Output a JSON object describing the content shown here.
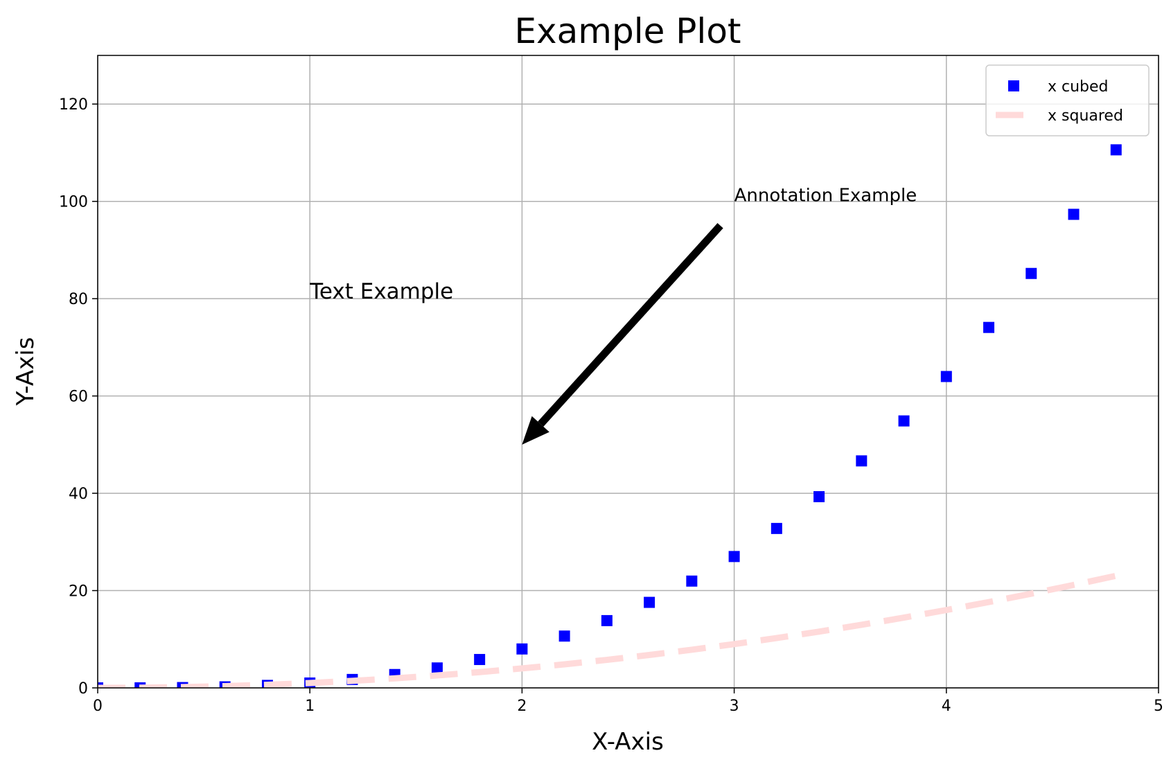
{
  "chart_data": {
    "type": "line",
    "title": "Example Plot",
    "x_label": "X-Axis",
    "y_label": "Y-Axis",
    "x": [
      0,
      0.2,
      0.4,
      0.6,
      0.8,
      1,
      1.2,
      1.4,
      1.6,
      1.8,
      2,
      2.2,
      2.4,
      2.6,
      2.8,
      3,
      3.2,
      3.4,
      3.6,
      3.8,
      4,
      4.2,
      4.4,
      4.6,
      4.8
    ],
    "series": [
      {
        "name": "x cubed",
        "color": "#0000ff",
        "style": "square-markers",
        "values": [
          0,
          0.008,
          0.064,
          0.216,
          0.512,
          1,
          1.728,
          2.744,
          4.096,
          5.832,
          8,
          10.648,
          13.824,
          17.576,
          21.952,
          27,
          32.768,
          39.304,
          46.656,
          54.872,
          64,
          74.088,
          85.184,
          97.336,
          110.592
        ]
      },
      {
        "name": "x squared",
        "color": "#ffdada",
        "style": "dashed-line",
        "values": [
          0,
          0.04,
          0.16,
          0.36,
          0.64,
          1,
          1.44,
          1.96,
          2.56,
          3.24,
          4,
          4.84,
          5.76,
          6.76,
          7.84,
          9,
          10.24,
          11.56,
          12.96,
          14.44,
          16,
          17.64,
          19.36,
          21.16,
          23.04
        ]
      }
    ],
    "xlim": [
      0,
      5
    ],
    "ylim": [
      0,
      130
    ],
    "xticks": [
      0,
      1,
      2,
      3,
      4,
      5
    ],
    "yticks": [
      0,
      20,
      40,
      60,
      80,
      100,
      120
    ],
    "grid": true,
    "legend": "upper right",
    "annotations": [
      {
        "text": "Annotation Example",
        "x": 3,
        "y": 100,
        "arrow_to": [
          2,
          50
        ],
        "color": "#000000"
      },
      {
        "text": "Text Example",
        "x": 1,
        "y": 80,
        "color": "#008000"
      }
    ]
  }
}
